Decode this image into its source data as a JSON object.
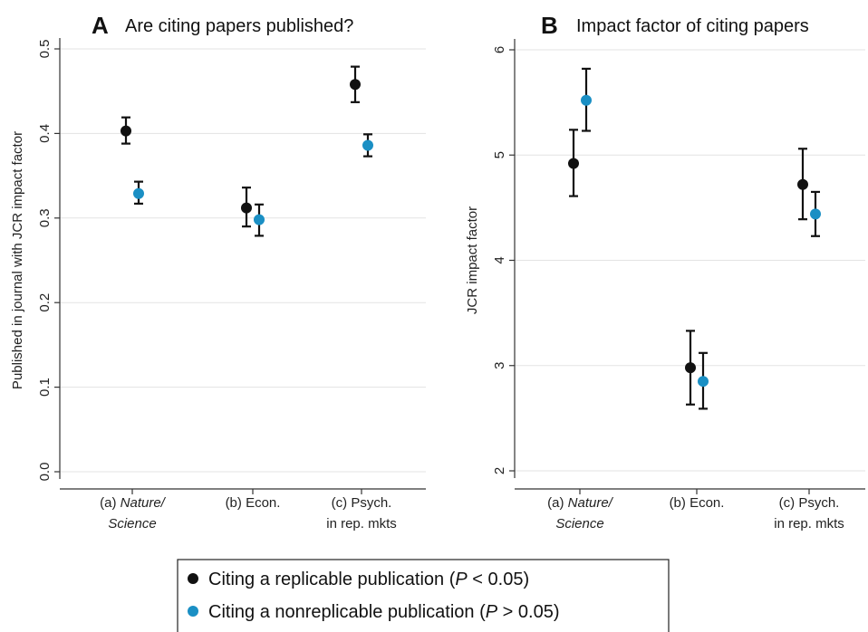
{
  "colors": {
    "replicable": "#111111",
    "nonreplicable": "#1a8fc4"
  },
  "legend": {
    "items": [
      {
        "key": "replicable",
        "pre": "Citing a replicable publication (",
        "italic": "P",
        "post": " < 0.05)"
      },
      {
        "key": "nonreplicable",
        "pre": "Citing a nonreplicable publication (",
        "italic": "P",
        "post": " > 0.05)"
      }
    ]
  },
  "chart_data": [
    {
      "type": "scatter",
      "letter": "A",
      "title": "Are citing papers published?",
      "ylabel": "Published in journal with JCR impact factor",
      "ylim": [
        0,
        0.5
      ],
      "yticks": [
        "0.0",
        "0.1",
        "0.2",
        "0.3",
        "0.4",
        "0.5"
      ],
      "grid": true,
      "categories": [
        {
          "line1_pre": "(a) ",
          "line1_italic": "Nature/",
          "line2": "Science",
          "line2_italic": true
        },
        {
          "line1_pre": "(b) Econ.",
          "line1_italic": "",
          "line2": "",
          "line2_italic": false
        },
        {
          "line1_pre": "(c) Psych.",
          "line1_italic": "",
          "line2": "in rep. mkts",
          "line2_italic": false
        }
      ],
      "series": [
        {
          "key": "replicable",
          "values": [
            0.403,
            0.312,
            0.458
          ],
          "lo": [
            0.388,
            0.29,
            0.437
          ],
          "hi": [
            0.419,
            0.336,
            0.479
          ]
        },
        {
          "key": "nonreplicable",
          "values": [
            0.329,
            0.298,
            0.386
          ],
          "lo": [
            0.317,
            0.279,
            0.373
          ],
          "hi": [
            0.343,
            0.316,
            0.399
          ]
        }
      ]
    },
    {
      "type": "scatter",
      "letter": "B",
      "title": "Impact factor of citing papers",
      "ylabel": "JCR impact factor",
      "ylim": [
        2,
        6
      ],
      "yticks": [
        "2",
        "3",
        "4",
        "5",
        "6"
      ],
      "grid": true,
      "categories": [
        {
          "line1_pre": "(a) ",
          "line1_italic": "Nature/",
          "line2": "Science",
          "line2_italic": true
        },
        {
          "line1_pre": "(b) Econ.",
          "line1_italic": "",
          "line2": "",
          "line2_italic": false
        },
        {
          "line1_pre": "(c) Psych.",
          "line1_italic": "",
          "line2": "in rep. mkts",
          "line2_italic": false
        }
      ],
      "series": [
        {
          "key": "replicable",
          "values": [
            4.92,
            2.98,
            4.72
          ],
          "lo": [
            4.61,
            2.63,
            4.39
          ],
          "hi": [
            5.24,
            3.33,
            5.06
          ]
        },
        {
          "key": "nonreplicable",
          "values": [
            5.52,
            2.85,
            4.44
          ],
          "lo": [
            5.23,
            2.59,
            4.23
          ],
          "hi": [
            5.82,
            3.12,
            4.65
          ]
        }
      ]
    }
  ]
}
